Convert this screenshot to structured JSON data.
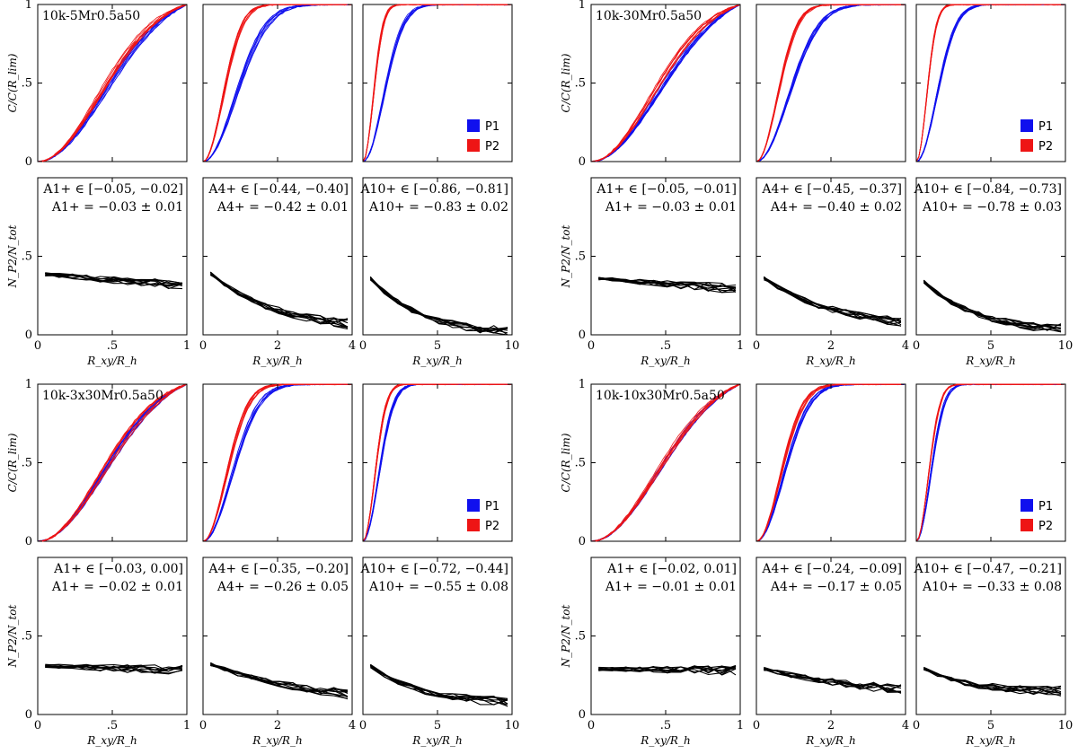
{
  "colors": {
    "P1": "#1010ee",
    "P2": "#ee1515",
    "ratio": "#000000"
  },
  "chart_data": [
    {
      "type": "line",
      "title": "10k-5Mr0.5a50",
      "top_ylabel": "C/C(R_lim)",
      "bottom_ylabel": "N_P2/N_tot",
      "xlabel": "R_xy/R_h",
      "ylim": [
        0,
        1
      ],
      "bottom_yticks": [
        "0",
        ".5"
      ],
      "top_yticks": [
        "0",
        ".5",
        "1"
      ],
      "legend": [
        "P1",
        "P2"
      ],
      "columns": [
        {
          "xmax": 1,
          "xticks": [
            "0",
            ".5",
            "1"
          ],
          "xtick_values": [
            0,
            0.5,
            1
          ],
          "p1_scale": 0.5,
          "p2_scale": 0.46,
          "annot_range": "A1+ ∈ [−0.05, −0.02]",
          "annot_value": "A1+ = −0.03 ± 0.01",
          "ratio_start": 0.39,
          "ratio_end": 0.31,
          "ratio_decay": 0
        },
        {
          "xmax": 4,
          "xticks": [
            "0",
            "2",
            "4"
          ],
          "xtick_values": [
            0,
            2,
            4
          ],
          "p1_scale": 1.2,
          "p2_scale": 0.75,
          "annot_range": "A4+ ∈ [−0.44, −0.40]",
          "annot_value": "A4+ = −0.42 ± 0.01",
          "ratio_start": 0.39,
          "ratio_end": 0.07,
          "ratio_decay": 0.45
        },
        {
          "xmax": 10,
          "xticks": [
            "0",
            "5",
            "10"
          ],
          "xtick_values": [
            0,
            5,
            10
          ],
          "p1_scale": 1.9,
          "p2_scale": 0.95,
          "annot_range": "A10+ ∈ [−0.86, −0.81]",
          "annot_value": "A10+ = −0.83 ± 0.02",
          "ratio_start": 0.36,
          "ratio_end": 0.02,
          "ratio_decay": 0.35
        }
      ]
    },
    {
      "type": "line",
      "title": "10k-30Mr0.5a50",
      "top_ylabel": "C/C(R_lim)",
      "bottom_ylabel": "N_P2/N_tot",
      "xlabel": "R_xy/R_h",
      "ylim": [
        0,
        1
      ],
      "bottom_yticks": [
        "0",
        ".5"
      ],
      "top_yticks": [
        "0",
        ".5",
        "1"
      ],
      "legend": [
        "P1",
        "P2"
      ],
      "columns": [
        {
          "xmax": 1,
          "xticks": [
            "0",
            ".5",
            "1"
          ],
          "xtick_values": [
            0,
            0.5,
            1
          ],
          "p1_scale": 0.5,
          "p2_scale": 0.46,
          "annot_range": "A1+ ∈ [−0.05, −0.01]",
          "annot_value": "A1+ = −0.03 ± 0.01",
          "ratio_start": 0.36,
          "ratio_end": 0.29,
          "ratio_decay": 0
        },
        {
          "xmax": 4,
          "xticks": [
            "0",
            "2",
            "4"
          ],
          "xtick_values": [
            0,
            2,
            4
          ],
          "p1_scale": 1.2,
          "p2_scale": 0.78,
          "annot_range": "A4+ ∈ [−0.45, −0.37]",
          "annot_value": "A4+ = −0.40 ± 0.02",
          "ratio_start": 0.36,
          "ratio_end": 0.08,
          "ratio_decay": 0.5
        },
        {
          "xmax": 10,
          "xticks": [
            "0",
            "5",
            "10"
          ],
          "xtick_values": [
            0,
            5,
            10
          ],
          "p1_scale": 1.9,
          "p2_scale": 0.95,
          "annot_range": "A10+ ∈ [−0.84, −0.73]",
          "annot_value": "A10+ = −0.78 ± 0.03",
          "ratio_start": 0.34,
          "ratio_end": 0.04,
          "ratio_decay": 0.35
        }
      ]
    },
    {
      "type": "line",
      "title": "10k-3x30Mr0.5a50",
      "top_ylabel": "C/C(R_lim)",
      "bottom_ylabel": "N_P2/N_tot",
      "xlabel": "R_xy/R_h",
      "ylim": [
        0,
        1
      ],
      "bottom_yticks": [
        "0",
        ".5"
      ],
      "top_yticks": [
        "0",
        ".5",
        "1"
      ],
      "legend": [
        "P1",
        "P2"
      ],
      "columns": [
        {
          "xmax": 1,
          "xticks": [
            "0",
            ".5",
            "1"
          ],
          "xtick_values": [
            0,
            0.5,
            1
          ],
          "p1_scale": 0.5,
          "p2_scale": 0.48,
          "annot_range": "A1+ ∈ [−0.03, 0.00]",
          "annot_value": "A1+ = −0.02 ± 0.01",
          "ratio_start": 0.31,
          "ratio_end": 0.28,
          "ratio_decay": 0
        },
        {
          "xmax": 4,
          "xticks": [
            "0",
            "2",
            "4"
          ],
          "xtick_values": [
            0,
            2,
            4
          ],
          "p1_scale": 1.05,
          "p2_scale": 0.85,
          "annot_range": "A4+ ∈ [−0.35, −0.20]",
          "annot_value": "A4+ = −0.26 ± 0.05",
          "ratio_start": 0.32,
          "ratio_end": 0.13,
          "ratio_decay": 0.7
        },
        {
          "xmax": 10,
          "xticks": [
            "0",
            "5",
            "10"
          ],
          "xtick_values": [
            0,
            5,
            10
          ],
          "p1_scale": 1.45,
          "p2_scale": 1.1,
          "annot_range": "A10+ ∈ [−0.72, −0.44]",
          "annot_value": "A10+ = −0.55 ± 0.08",
          "ratio_start": 0.31,
          "ratio_end": 0.08,
          "ratio_decay": 0.35
        }
      ]
    },
    {
      "type": "line",
      "title": "10k-10x30Mr0.5a50",
      "top_ylabel": "C/C(R_lim)",
      "bottom_ylabel": "N_P2/N_tot",
      "xlabel": "R_xy/R_h",
      "ylim": [
        0,
        1
      ],
      "bottom_yticks": [
        "0",
        ".5"
      ],
      "top_yticks": [
        "0",
        ".5",
        "1"
      ],
      "legend": [
        "P1",
        "P2"
      ],
      "columns": [
        {
          "xmax": 1,
          "xticks": [
            "0",
            ".5",
            "1"
          ],
          "xtick_values": [
            0,
            0.5,
            1
          ],
          "p1_scale": 0.5,
          "p2_scale": 0.49,
          "annot_range": "A1+ ∈ [−0.02, 0.01]",
          "annot_value": "A1+ = −0.01 ± 0.01",
          "ratio_start": 0.29,
          "ratio_end": 0.28,
          "ratio_decay": 0
        },
        {
          "xmax": 4,
          "xticks": [
            "0",
            "2",
            "4"
          ],
          "xtick_values": [
            0,
            2,
            4
          ],
          "p1_scale": 1.0,
          "p2_scale": 0.88,
          "annot_range": "A4+ ∈ [−0.24, −0.09]",
          "annot_value": "A4+ = −0.17 ± 0.05",
          "ratio_start": 0.29,
          "ratio_end": 0.16,
          "ratio_decay": 0.8
        },
        {
          "xmax": 10,
          "xticks": [
            "0",
            "5",
            "10"
          ],
          "xtick_values": [
            0,
            5,
            10
          ],
          "p1_scale": 1.3,
          "p2_scale": 1.1,
          "annot_range": "A10+ ∈ [−0.47, −0.21]",
          "annot_value": "A10+ = −0.33 ± 0.08",
          "ratio_start": 0.29,
          "ratio_end": 0.15,
          "ratio_decay": 0.3
        }
      ]
    }
  ]
}
